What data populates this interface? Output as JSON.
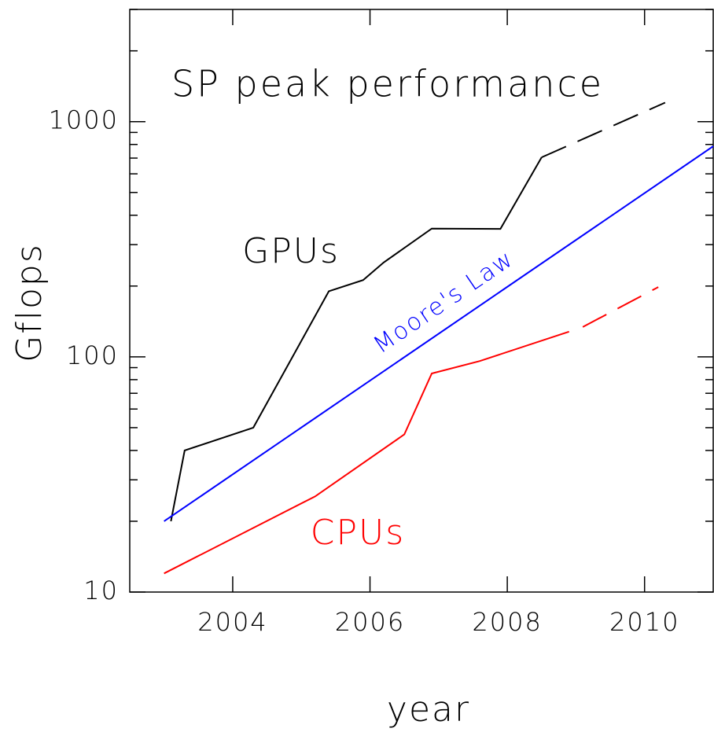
{
  "chart_data": {
    "type": "line",
    "title": "SP peak performance",
    "xlabel": "year",
    "ylabel": "Gflops",
    "log_y": true,
    "xlim": [
      2002.5,
      2011
    ],
    "xticks": [
      2004,
      2006,
      2008,
      2010
    ],
    "ylim": [
      10,
      3000
    ],
    "yticks": [
      10,
      100,
      1000
    ],
    "yminorticks": [
      20,
      30,
      40,
      50,
      60,
      70,
      80,
      90,
      200,
      300,
      400,
      500,
      600,
      700,
      800,
      900,
      2000,
      3000
    ],
    "series": [
      {
        "name": "GPUs",
        "color": "#000000",
        "x": [
          2003.1,
          2003.3,
          2004.3,
          2005.4,
          2005.9,
          2006.2,
          2006.9,
          2007.9,
          2008.5
        ],
        "values": [
          20,
          40,
          50,
          190,
          212,
          252,
          351,
          350,
          705
        ],
        "projected_x": [
          2008.5,
          2010.3
        ],
        "projected_values": [
          705,
          1205
        ]
      },
      {
        "name": "Moore's Law",
        "color": "#0000ff",
        "x": [
          2003.0,
          2011.0
        ],
        "values": [
          20,
          786
        ]
      },
      {
        "name": "CPUs",
        "color": "#ff0000",
        "x": [
          2003.0,
          2005.2,
          2006.5,
          2006.9,
          2007.6,
          2008.9
        ],
        "values": [
          12,
          25.5,
          46.8,
          85,
          96,
          128
        ],
        "projected_x": [
          2009.1,
          2010.2
        ],
        "projected_values": [
          134,
          198
        ]
      }
    ]
  }
}
